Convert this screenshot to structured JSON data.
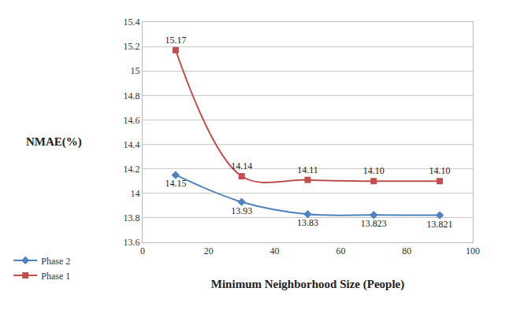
{
  "chart_data": {
    "type": "line",
    "x_label": "Minimum Neighborhood Size (People)",
    "y_label": "NMAE(%)",
    "xlim": [
      0,
      100
    ],
    "xticks": [
      0,
      20,
      40,
      60,
      80,
      100
    ],
    "ylim": [
      13.6,
      15.4
    ],
    "yticks": [
      13.6,
      13.8,
      14,
      14.2,
      14.4,
      14.6,
      14.8,
      15,
      15.2,
      15.4
    ],
    "grid": true,
    "legend": "bottom-left",
    "data_labels": true,
    "line_style": "smooth",
    "x": [
      10,
      30,
      50,
      70,
      90
    ],
    "series": [
      {
        "name": "Phase 2",
        "color": "#4f81bd",
        "marker": "diamond",
        "values": [
          14.15,
          13.93,
          13.83,
          13.823,
          13.821
        ],
        "value_labels": [
          "14.15",
          "13.93",
          "13.83",
          "13.823",
          "13.821"
        ]
      },
      {
        "name": "Phase 1",
        "color": "#c0504d",
        "marker": "square",
        "values": [
          15.17,
          14.14,
          14.11,
          14.1,
          14.1
        ],
        "value_labels": [
          "15.17",
          "14.14",
          "14.11",
          "14.10",
          "14.10"
        ]
      }
    ]
  }
}
